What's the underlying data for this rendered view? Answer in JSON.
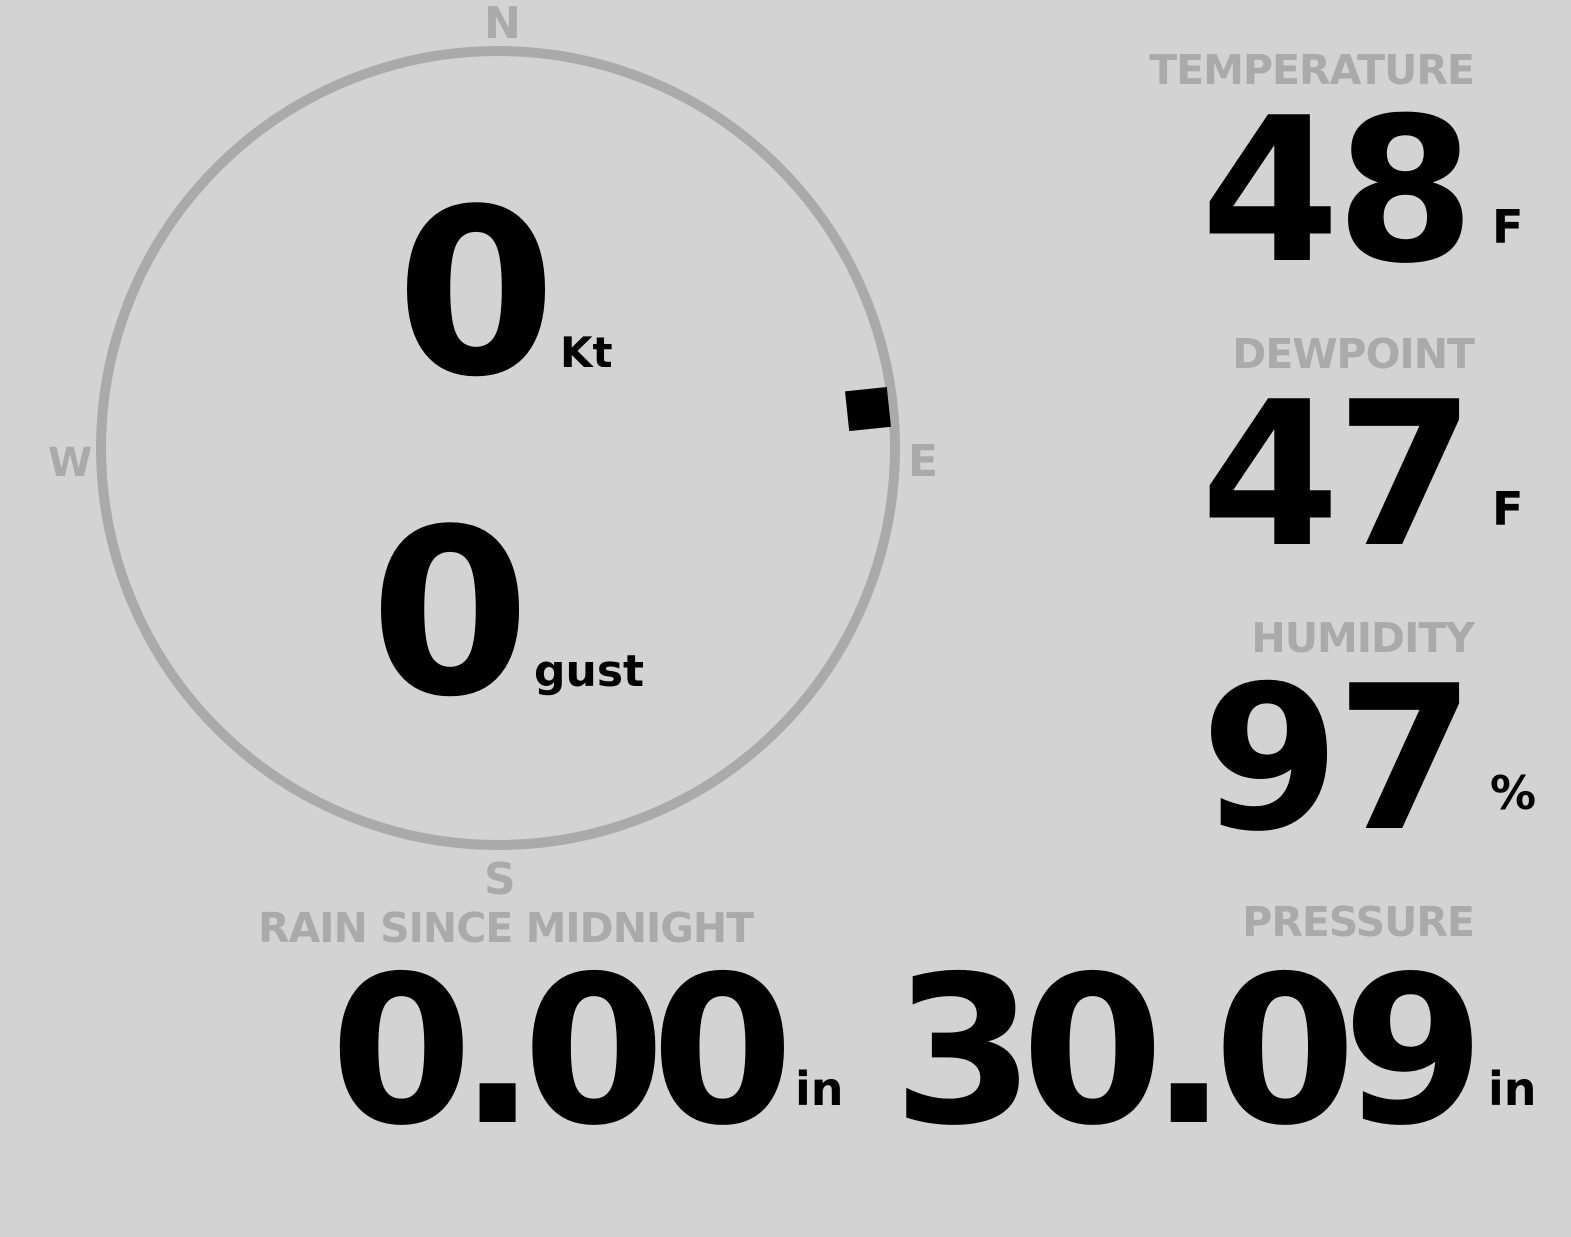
{
  "wind": {
    "speed": "0",
    "speed_unit": "Kt",
    "gust": "0",
    "gust_unit": "gust",
    "direction_deg": 84,
    "compass": {
      "n": "N",
      "e": "E",
      "s": "S",
      "w": "W"
    }
  },
  "temperature": {
    "label": "TEMPERATURE",
    "value": "48",
    "unit": "F"
  },
  "dewpoint": {
    "label": "DEWPOINT",
    "value": "47",
    "unit": "F"
  },
  "humidity": {
    "label": "HUMIDITY",
    "value": "97",
    "unit": "%"
  },
  "rain": {
    "label": "RAIN SINCE MIDNIGHT",
    "value": "0.00",
    "unit": "in"
  },
  "pressure": {
    "label": "PRESSURE",
    "value": "30.09",
    "unit": "in"
  },
  "colors": {
    "background": "#d3d3d3",
    "label": "#aaaaaa",
    "value": "#000000"
  }
}
